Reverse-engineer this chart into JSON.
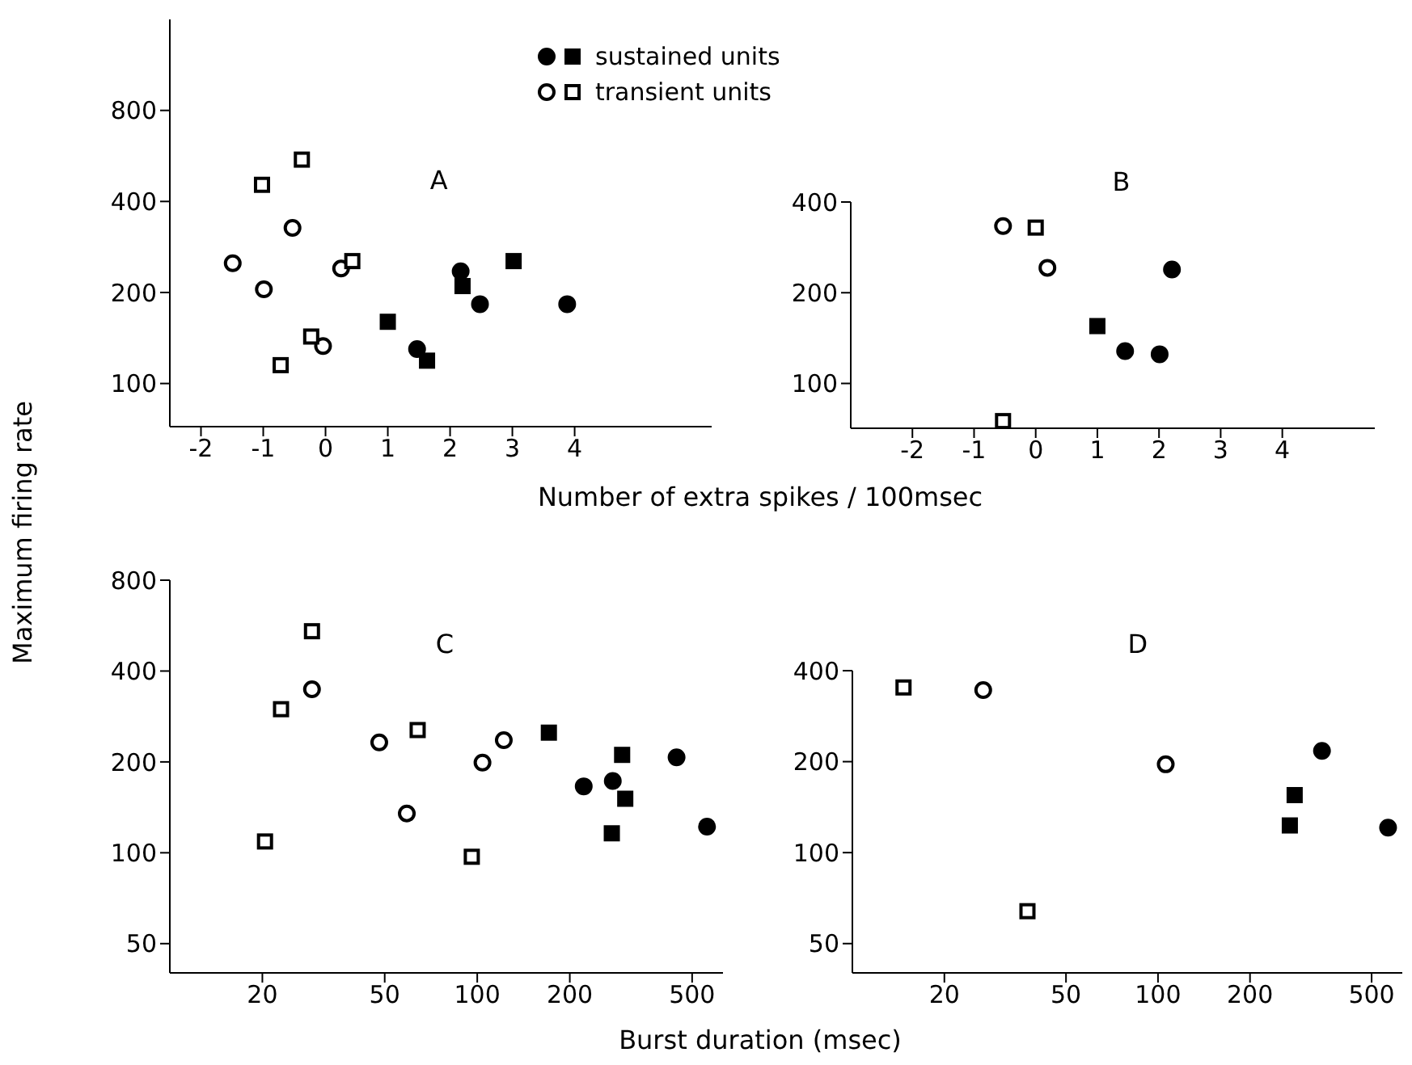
{
  "chart_data": [
    {
      "type": "scatter",
      "xlabel": "Number of extra spikes / 100msec",
      "ylabel": "Maximum firing rate",
      "legend": "top",
      "log": "y",
      "xlim": [
        -2.5,
        6.2
      ],
      "ylim": [
        72,
        1600
      ],
      "xticks": [
        -2,
        -1,
        0,
        1,
        2,
        3,
        4
      ],
      "yticks": [
        100,
        200,
        400,
        800
      ],
      "annotations": [
        "A"
      ],
      "series": [
        {
          "color": "#000000",
          "marker": "circle",
          "x": [
            2.17,
            2.48,
            3.88,
            1.47
          ],
          "values": [
            235,
            183,
            183,
            130
          ]
        },
        {
          "name": "sustained units",
          "color": "#000000",
          "marker": "square",
          "x": [
            1.0,
            2.2,
            3.02,
            1.63
          ],
          "values": [
            160,
            210,
            254,
            119
          ]
        },
        {
          "color": "#ffffff",
          "marker": "circle",
          "x": [
            -1.49,
            -0.99,
            -0.53,
            -0.04,
            0.25
          ],
          "values": [
            250,
            205,
            327,
            133,
            240
          ]
        },
        {
          "name": "transient units",
          "color": "#ffffff",
          "marker": "square",
          "x": [
            -1.02,
            -0.38,
            -0.72,
            -0.23,
            0.43
          ],
          "values": [
            454,
            550,
            115,
            143,
            254
          ]
        }
      ]
    },
    {
      "type": "scatter",
      "log": "y",
      "xlim": [
        -3,
        5.5
      ],
      "ylim": [
        71,
        400
      ],
      "xticks": [
        -2,
        -1,
        0,
        1,
        2,
        3,
        4
      ],
      "yticks": [
        100,
        200,
        400
      ],
      "annotations": [
        "B"
      ],
      "series": [
        {
          "color": "#000000",
          "marker": "circle",
          "x": [
            2.21,
            1.45,
            2.01
          ],
          "values": [
            239,
            128,
            125
          ]
        },
        {
          "color": "#000000",
          "marker": "square",
          "x": [
            1.0
          ],
          "values": [
            155
          ]
        },
        {
          "color": "#ffffff",
          "marker": "circle",
          "x": [
            -0.53,
            0.19
          ],
          "values": [
            333,
            242
          ]
        },
        {
          "color": "#ffffff",
          "marker": "square",
          "x": [
            0.0,
            -0.53
          ],
          "values": [
            329,
            75
          ]
        }
      ]
    },
    {
      "type": "scatter",
      "xlabel": "Burst duration (msec)",
      "log": "xy",
      "xlim": [
        10,
        630
      ],
      "ylim": [
        40,
        800
      ],
      "xticks": [
        20,
        50,
        100,
        200,
        500
      ],
      "yticks": [
        50,
        100,
        200,
        400,
        800
      ],
      "annotations": [
        "C"
      ],
      "series": [
        {
          "color": "#000000",
          "marker": "circle",
          "x": [
            222,
            276,
            445,
            559
          ],
          "values": [
            166,
            173,
            207,
            122
          ]
        },
        {
          "color": "#000000",
          "marker": "square",
          "x": [
            171,
            296,
            303,
            274
          ],
          "values": [
            250,
            211,
            151,
            116
          ]
        },
        {
          "color": "#ffffff",
          "marker": "circle",
          "x": [
            29,
            48,
            59,
            104,
            122
          ],
          "values": [
            348,
            232,
            135,
            199,
            236
          ]
        },
        {
          "color": "#ffffff",
          "marker": "square",
          "x": [
            29,
            23,
            64,
            20.4,
            96
          ],
          "values": [
            542,
            299,
            255,
            109,
            97
          ]
        }
      ]
    },
    {
      "type": "scatter",
      "log": "xy",
      "xlim": [
        10,
        630
      ],
      "ylim": [
        40,
        400
      ],
      "xticks": [
        20,
        50,
        100,
        200,
        500
      ],
      "yticks": [
        50,
        100,
        200,
        400
      ],
      "annotations": [
        "D"
      ],
      "series": [
        {
          "color": "#000000",
          "marker": "circle",
          "x": [
            344,
            566
          ],
          "values": [
            217,
            121
          ]
        },
        {
          "color": "#000000",
          "marker": "square",
          "x": [
            280,
            270
          ],
          "values": [
            155,
            123
          ]
        },
        {
          "color": "#ffffff",
          "marker": "circle",
          "x": [
            26.8,
            106
          ],
          "values": [
            345,
            196
          ]
        },
        {
          "color": "#ffffff",
          "marker": "square",
          "x": [
            14.7,
            37.4
          ],
          "values": [
            352,
            64
          ]
        }
      ]
    }
  ]
}
